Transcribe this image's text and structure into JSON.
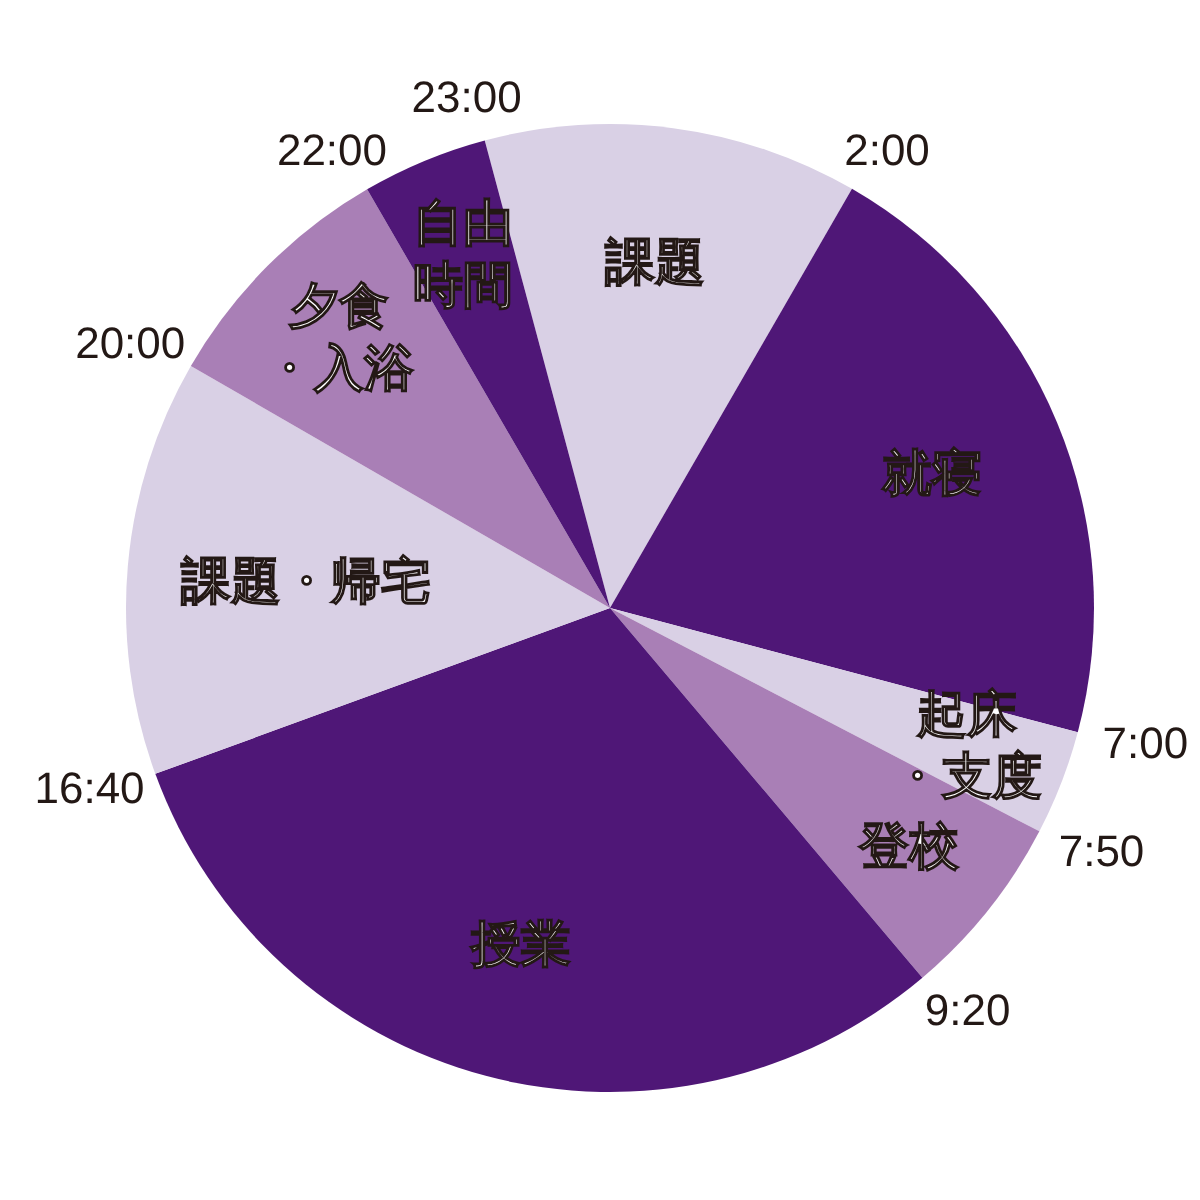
{
  "chart_data": {
    "type": "pie",
    "categories": [
      "課題",
      "就寝",
      "起床・支度",
      "登校",
      "授業",
      "課題・帰宅",
      "夕食・入浴",
      "自由時間"
    ],
    "values": [
      12.5,
      20.8,
      3.5,
      6.2,
      30.6,
      13.9,
      8.3,
      4.2
    ],
    "colors": [
      "#d9d0e5",
      "#4f1777",
      "#d9d0e5",
      "#a97fb6",
      "#4f1777",
      "#d9d0e5",
      "#a97fb6",
      "#4f1777"
    ],
    "annotations": [
      "23:00",
      "2:00",
      "7:00",
      "7:50",
      "9:20",
      "16:40",
      "20:00",
      "22:00"
    ]
  }
}
